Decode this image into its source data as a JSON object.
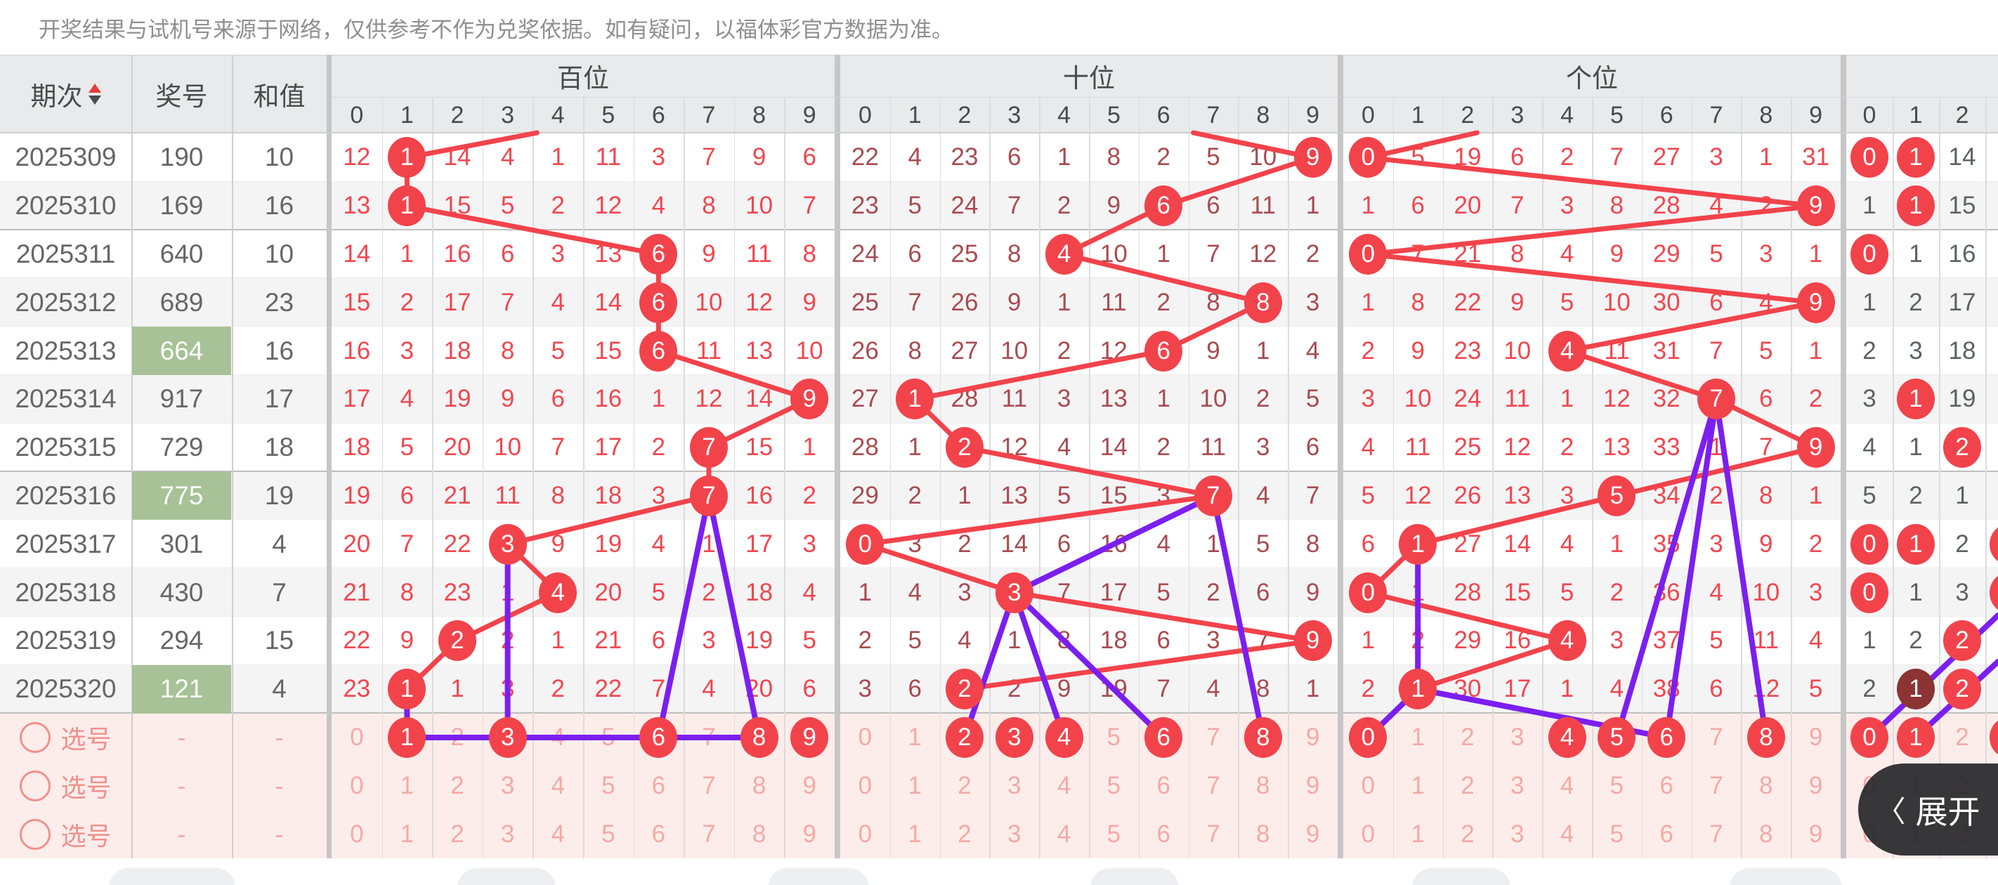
{
  "disclaimer": "开奖结果与试机号来源于网络，仅供参考不作为兑奖依据。如有疑问，以福体彩官方数据为准。",
  "expand_button": {
    "label": "展开",
    "chevron": "〈"
  },
  "colors": {
    "accent_red": "#f2434b",
    "miss_red": "#f2464e",
    "miss_maroon": "#a84b50",
    "miss_gray": "#5d6165",
    "purple": "#7b1ff0",
    "green_highlight": "#a6c296",
    "dark_circle": "#8c3333",
    "pink_bg": "#fdedea",
    "pink_text": "#f5a9a6",
    "pink_label": "#f0908d",
    "header_bg": "#e9eaeb",
    "stripe": "#f4f4f5",
    "text_gray": "#666666"
  },
  "table": {
    "left_columns": {
      "period": "期次",
      "number": "奖号",
      "sum": "和值"
    },
    "sections": [
      {
        "key": "bai",
        "title": "百位",
        "digits": [
          "0",
          "1",
          "2",
          "3",
          "4",
          "5",
          "6",
          "7",
          "8",
          "9"
        ]
      },
      {
        "key": "shi",
        "title": "十位",
        "digits": [
          "0",
          "1",
          "2",
          "3",
          "4",
          "5",
          "6",
          "7",
          "8",
          "9"
        ]
      },
      {
        "key": "ge",
        "title": "个位",
        "digits": [
          "0",
          "1",
          "2",
          "3",
          "4",
          "5",
          "6",
          "7",
          "8",
          "9"
        ]
      },
      {
        "key": "right",
        "title": "",
        "digits": [
          "0",
          "1",
          "2"
        ]
      }
    ],
    "rows": [
      {
        "period": "2025309",
        "number": "190",
        "sum": "10",
        "highlight": false,
        "bai": {
          "miss": [
            "12",
            "1",
            "14",
            "4",
            "1",
            "11",
            "3",
            "7",
            "9",
            "6"
          ],
          "drawn": [
            1
          ]
        },
        "shi": {
          "miss": [
            "22",
            "4",
            "23",
            "6",
            "1",
            "8",
            "2",
            "5",
            "10",
            "9"
          ],
          "drawn": [
            9
          ]
        },
        "ge": {
          "miss": [
            "0",
            "5",
            "19",
            "6",
            "2",
            "7",
            "27",
            "3",
            "1",
            "31"
          ],
          "drawn": [
            0
          ]
        },
        "right": {
          "miss": [
            "0",
            "1",
            "14"
          ],
          "drawn": [
            0,
            1
          ],
          "dark": [],
          "edge": false
        }
      },
      {
        "period": "2025310",
        "number": "169",
        "sum": "16",
        "highlight": false,
        "bai": {
          "miss": [
            "13",
            "1",
            "15",
            "5",
            "2",
            "12",
            "4",
            "8",
            "10",
            "7"
          ],
          "drawn": [
            1
          ]
        },
        "shi": {
          "miss": [
            "23",
            "5",
            "24",
            "7",
            "2",
            "9",
            "6",
            "6",
            "11",
            "1"
          ],
          "drawn": [
            6
          ]
        },
        "ge": {
          "miss": [
            "1",
            "6",
            "20",
            "7",
            "3",
            "8",
            "28",
            "4",
            "2",
            "9"
          ],
          "drawn": [
            9
          ]
        },
        "right": {
          "miss": [
            "1",
            "1",
            "15"
          ],
          "drawn": [
            1
          ],
          "dark": [],
          "edge": false
        }
      },
      {
        "period": "2025311",
        "number": "640",
        "sum": "10",
        "highlight": false,
        "bai": {
          "miss": [
            "14",
            "1",
            "16",
            "6",
            "3",
            "13",
            "6",
            "9",
            "11",
            "8"
          ],
          "drawn": [
            6
          ]
        },
        "shi": {
          "miss": [
            "24",
            "6",
            "25",
            "8",
            "4",
            "10",
            "1",
            "7",
            "12",
            "2"
          ],
          "drawn": [
            4
          ]
        },
        "ge": {
          "miss": [
            "0",
            "7",
            "21",
            "8",
            "4",
            "9",
            "29",
            "5",
            "3",
            "1"
          ],
          "drawn": [
            0
          ]
        },
        "right": {
          "miss": [
            "0",
            "1",
            "16"
          ],
          "drawn": [
            0
          ],
          "dark": [],
          "edge": false
        }
      },
      {
        "period": "2025312",
        "number": "689",
        "sum": "23",
        "highlight": false,
        "bai": {
          "miss": [
            "15",
            "2",
            "17",
            "7",
            "4",
            "14",
            "6",
            "10",
            "12",
            "9"
          ],
          "drawn": [
            6
          ]
        },
        "shi": {
          "miss": [
            "25",
            "7",
            "26",
            "9",
            "1",
            "11",
            "2",
            "8",
            "8",
            "3"
          ],
          "drawn": [
            8
          ]
        },
        "ge": {
          "miss": [
            "1",
            "8",
            "22",
            "9",
            "5",
            "10",
            "30",
            "6",
            "4",
            "9"
          ],
          "drawn": [
            9
          ]
        },
        "right": {
          "miss": [
            "1",
            "2",
            "17"
          ],
          "drawn": [],
          "dark": [],
          "edge": false
        }
      },
      {
        "period": "2025313",
        "number": "664",
        "sum": "16",
        "highlight": true,
        "bai": {
          "miss": [
            "16",
            "3",
            "18",
            "8",
            "5",
            "15",
            "6",
            "11",
            "13",
            "10"
          ],
          "drawn": [
            6
          ]
        },
        "shi": {
          "miss": [
            "26",
            "8",
            "27",
            "10",
            "2",
            "12",
            "6",
            "9",
            "1",
            "4"
          ],
          "drawn": [
            6
          ]
        },
        "ge": {
          "miss": [
            "2",
            "9",
            "23",
            "10",
            "4",
            "11",
            "31",
            "7",
            "5",
            "1"
          ],
          "drawn": [
            4
          ]
        },
        "right": {
          "miss": [
            "2",
            "3",
            "18"
          ],
          "drawn": [],
          "dark": [],
          "edge": false
        }
      },
      {
        "period": "2025314",
        "number": "917",
        "sum": "17",
        "highlight": false,
        "bai": {
          "miss": [
            "17",
            "4",
            "19",
            "9",
            "6",
            "16",
            "1",
            "12",
            "14",
            "9"
          ],
          "drawn": [
            9
          ]
        },
        "shi": {
          "miss": [
            "27",
            "1",
            "28",
            "11",
            "3",
            "13",
            "1",
            "10",
            "2",
            "5"
          ],
          "drawn": [
            1
          ]
        },
        "ge": {
          "miss": [
            "3",
            "10",
            "24",
            "11",
            "1",
            "12",
            "32",
            "7",
            "6",
            "2"
          ],
          "drawn": [
            7
          ]
        },
        "right": {
          "miss": [
            "3",
            "1",
            "19"
          ],
          "drawn": [
            1
          ],
          "dark": [],
          "edge": false
        }
      },
      {
        "period": "2025315",
        "number": "729",
        "sum": "18",
        "highlight": false,
        "bai": {
          "miss": [
            "18",
            "5",
            "20",
            "10",
            "7",
            "17",
            "2",
            "7",
            "15",
            "1"
          ],
          "drawn": [
            7
          ]
        },
        "shi": {
          "miss": [
            "28",
            "1",
            "2",
            "12",
            "4",
            "14",
            "2",
            "11",
            "3",
            "6"
          ],
          "drawn": [
            2
          ]
        },
        "ge": {
          "miss": [
            "4",
            "11",
            "25",
            "12",
            "2",
            "13",
            "33",
            "1",
            "7",
            "9"
          ],
          "drawn": [
            9
          ]
        },
        "right": {
          "miss": [
            "4",
            "1",
            "2"
          ],
          "drawn": [
            2
          ],
          "dark": [],
          "edge": false
        }
      },
      {
        "period": "2025316",
        "number": "775",
        "sum": "19",
        "highlight": true,
        "bai": {
          "miss": [
            "19",
            "6",
            "21",
            "11",
            "8",
            "18",
            "3",
            "7",
            "16",
            "2"
          ],
          "drawn": [
            7
          ]
        },
        "shi": {
          "miss": [
            "29",
            "2",
            "1",
            "13",
            "5",
            "15",
            "3",
            "7",
            "4",
            "7"
          ],
          "drawn": [
            7
          ]
        },
        "ge": {
          "miss": [
            "5",
            "12",
            "26",
            "13",
            "3",
            "5",
            "34",
            "2",
            "8",
            "1"
          ],
          "drawn": [
            5
          ]
        },
        "right": {
          "miss": [
            "5",
            "2",
            "1"
          ],
          "drawn": [],
          "dark": [],
          "edge": false
        }
      },
      {
        "period": "2025317",
        "number": "301",
        "sum": "4",
        "highlight": false,
        "bai": {
          "miss": [
            "20",
            "7",
            "22",
            "3",
            "9",
            "19",
            "4",
            "1",
            "17",
            "3"
          ],
          "drawn": [
            3
          ]
        },
        "shi": {
          "miss": [
            "0",
            "3",
            "2",
            "14",
            "6",
            "16",
            "4",
            "1",
            "5",
            "8"
          ],
          "drawn": [
            0
          ]
        },
        "ge": {
          "miss": [
            "6",
            "1",
            "27",
            "14",
            "4",
            "1",
            "35",
            "3",
            "9",
            "2"
          ],
          "drawn": [
            1
          ]
        },
        "right": {
          "miss": [
            "0",
            "1",
            "2"
          ],
          "drawn": [
            0,
            1
          ],
          "dark": [],
          "edge": true
        }
      },
      {
        "period": "2025318",
        "number": "430",
        "sum": "7",
        "highlight": false,
        "bai": {
          "miss": [
            "21",
            "8",
            "23",
            "1",
            "4",
            "20",
            "5",
            "2",
            "18",
            "4"
          ],
          "drawn": [
            4
          ]
        },
        "shi": {
          "miss": [
            "1",
            "4",
            "3",
            "3",
            "7",
            "17",
            "5",
            "2",
            "6",
            "9"
          ],
          "drawn": [
            3
          ]
        },
        "ge": {
          "miss": [
            "0",
            "1",
            "28",
            "15",
            "5",
            "2",
            "36",
            "4",
            "10",
            "3"
          ],
          "drawn": [
            0
          ]
        },
        "right": {
          "miss": [
            "0",
            "1",
            "3"
          ],
          "drawn": [
            0
          ],
          "dark": [],
          "edge": true
        }
      },
      {
        "period": "2025319",
        "number": "294",
        "sum": "15",
        "highlight": false,
        "bai": {
          "miss": [
            "22",
            "9",
            "2",
            "2",
            "1",
            "21",
            "6",
            "3",
            "19",
            "5"
          ],
          "drawn": [
            2
          ]
        },
        "shi": {
          "miss": [
            "2",
            "5",
            "4",
            "1",
            "8",
            "18",
            "6",
            "3",
            "7",
            "9"
          ],
          "drawn": [
            9
          ]
        },
        "ge": {
          "miss": [
            "1",
            "2",
            "29",
            "16",
            "4",
            "3",
            "37",
            "5",
            "11",
            "4"
          ],
          "drawn": [
            4
          ]
        },
        "right": {
          "miss": [
            "1",
            "2",
            "2"
          ],
          "drawn": [
            2
          ],
          "dark": [],
          "edge": false
        }
      },
      {
        "period": "2025320",
        "number": "121",
        "sum": "4",
        "highlight": true,
        "bai": {
          "miss": [
            "23",
            "1",
            "1",
            "3",
            "2",
            "22",
            "7",
            "4",
            "20",
            "6"
          ],
          "drawn": [
            1
          ]
        },
        "shi": {
          "miss": [
            "3",
            "6",
            "2",
            "2",
            "9",
            "19",
            "7",
            "4",
            "8",
            "1"
          ],
          "drawn": [
            2
          ]
        },
        "ge": {
          "miss": [
            "2",
            "1",
            "30",
            "17",
            "1",
            "4",
            "38",
            "6",
            "12",
            "5"
          ],
          "drawn": [
            1
          ]
        },
        "right": {
          "miss": [
            "2",
            "1",
            "2"
          ],
          "drawn": [
            1,
            2
          ],
          "dark": [
            1
          ],
          "edge": false
        }
      }
    ],
    "select_rows": [
      {
        "label": "选号",
        "number": "-",
        "sum": "-",
        "bai": [
          1,
          3,
          6,
          8,
          9
        ],
        "shi": [
          2,
          3,
          4,
          6,
          8
        ],
        "ge": [
          0,
          4,
          5,
          6,
          8
        ],
        "right": [
          0,
          1
        ],
        "right_edge": true
      },
      {
        "label": "选号",
        "number": "-",
        "sum": "-",
        "bai": [],
        "shi": [],
        "ge": [],
        "right": [],
        "right_edge": false
      },
      {
        "label": "选号",
        "number": "-",
        "sum": "-",
        "bai": [],
        "shi": [],
        "ge": [],
        "right": [],
        "right_edge": false
      }
    ],
    "purple_links": [
      {
        "sec": "bai",
        "a": [
          "r8",
          3
        ],
        "b": [
          "s0",
          3
        ]
      },
      {
        "sec": "bai",
        "a": [
          "r7",
          7
        ],
        "b": [
          "s0",
          6
        ]
      },
      {
        "sec": "bai",
        "a": [
          "r7",
          7
        ],
        "b": [
          "s0",
          8
        ]
      },
      {
        "sec": "bai",
        "a": [
          "r11",
          1
        ],
        "b": [
          "s0",
          1
        ]
      },
      {
        "sec": "bai",
        "a": [
          "s0",
          1
        ],
        "b": [
          "s0",
          8
        ]
      },
      {
        "sec": "shi",
        "a": [
          "r7",
          7
        ],
        "b": [
          "r9",
          3
        ]
      },
      {
        "sec": "shi",
        "a": [
          "r9",
          3
        ],
        "b": [
          "s0",
          2
        ]
      },
      {
        "sec": "shi",
        "a": [
          "r9",
          3
        ],
        "b": [
          "s0",
          4
        ]
      },
      {
        "sec": "shi",
        "a": [
          "r9",
          3
        ],
        "b": [
          "s0",
          6
        ]
      },
      {
        "sec": "shi",
        "a": [
          "r7",
          7
        ],
        "b": [
          "s0",
          8
        ]
      },
      {
        "sec": "ge",
        "a": [
          "r5",
          7
        ],
        "b": [
          "s0",
          5
        ]
      },
      {
        "sec": "ge",
        "a": [
          "r5",
          7
        ],
        "b": [
          "s0",
          6
        ]
      },
      {
        "sec": "ge",
        "a": [
          "r5",
          7
        ],
        "b": [
          "s0",
          8
        ]
      },
      {
        "sec": "ge",
        "a": [
          "r8",
          1
        ],
        "b": [
          "r11",
          1
        ]
      },
      {
        "sec": "ge",
        "a": [
          "r11",
          1
        ],
        "b": [
          "s0",
          0
        ]
      },
      {
        "sec": "ge",
        "a": [
          "r11",
          1
        ],
        "b": [
          "s0",
          6
        ]
      },
      {
        "sec": "right",
        "a": [
          "e",
          2844,
          876
        ],
        "b": [
          "s0",
          0
        ]
      },
      {
        "sec": "right",
        "a": [
          "e",
          2844,
          942
        ],
        "b": [
          "s0",
          1
        ]
      }
    ]
  }
}
